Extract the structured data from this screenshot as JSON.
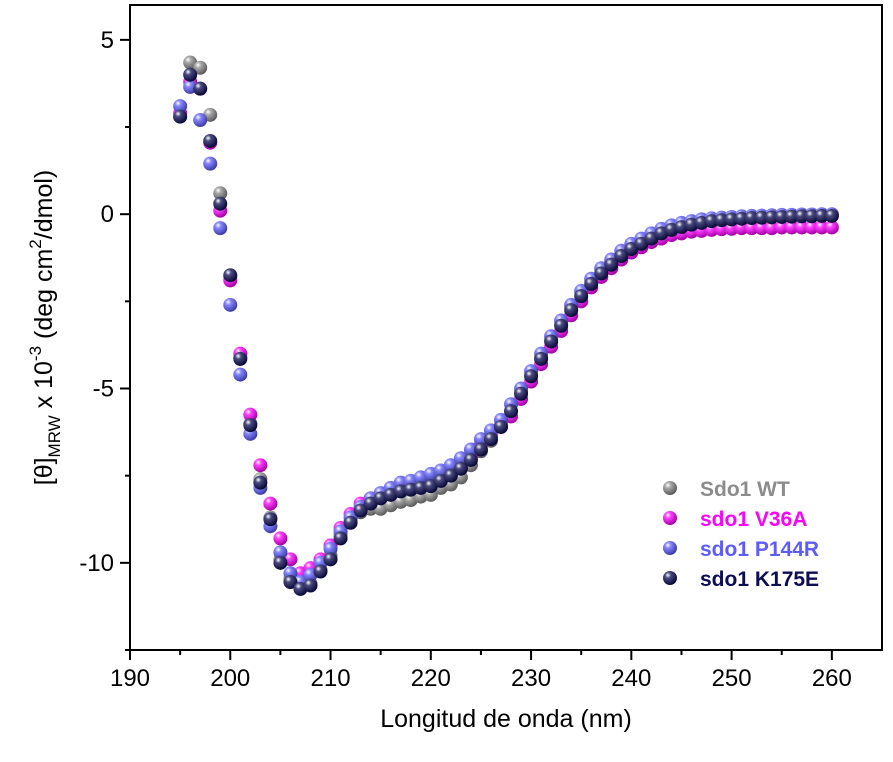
{
  "chart_data": {
    "type": "scatter",
    "xlabel": "Longitud de onda (nm)",
    "ylabel": {
      "prefix": "[θ]",
      "sub": "MRW",
      "mid": " x 10",
      "sup": "-3",
      "mid2": " (deg cm",
      "sup2": "2",
      "suffix": "/dmol)"
    },
    "xlim": [
      190,
      265
    ],
    "ylim": [
      -12.5,
      6
    ],
    "xticks": [
      190,
      200,
      210,
      220,
      230,
      240,
      250,
      260
    ],
    "yticks": [
      5,
      0,
      -5,
      -10
    ],
    "xtick_labels": [
      "190",
      "200",
      "210",
      "220",
      "230",
      "240",
      "250",
      "260"
    ],
    "ytick_labels": [
      "5",
      "0",
      "-5",
      "-10"
    ],
    "legend_position": "bottom-right",
    "grid": false,
    "series": [
      {
        "name": "Sdo1 WT",
        "color": "#8c8c8c",
        "x": [
          195,
          196,
          197,
          198,
          199,
          200,
          201,
          202,
          203,
          204,
          205,
          206,
          207,
          208,
          209,
          210,
          211,
          212,
          213,
          214,
          215,
          216,
          217,
          218,
          219,
          220,
          221,
          222,
          223,
          224,
          225,
          226,
          227,
          228,
          229,
          230,
          231,
          232,
          233,
          234,
          235,
          236,
          237,
          238,
          239,
          240,
          241,
          242,
          243,
          244,
          245,
          246,
          247,
          248,
          249,
          250,
          251,
          252,
          253,
          254,
          255,
          256,
          257,
          258,
          259,
          260
        ],
        "y": [
          2.8,
          4.35,
          4.2,
          2.85,
          0.6,
          -1.8,
          -4.1,
          -6.0,
          -7.6,
          -8.7,
          -9.9,
          -10.45,
          -10.7,
          -10.6,
          -10.2,
          -9.8,
          -9.2,
          -8.8,
          -8.55,
          -8.45,
          -8.45,
          -8.35,
          -8.25,
          -8.2,
          -8.1,
          -8.05,
          -7.85,
          -7.75,
          -7.55,
          -7.2,
          -6.8,
          -6.5,
          -6.1,
          -5.65,
          -5.1,
          -4.6,
          -4.1,
          -3.6,
          -3.15,
          -2.65,
          -2.25,
          -1.9,
          -1.6,
          -1.35,
          -1.1,
          -0.9,
          -0.75,
          -0.6,
          -0.45,
          -0.35,
          -0.3,
          -0.25,
          -0.2,
          -0.18,
          -0.15,
          -0.12,
          -0.1,
          -0.1,
          -0.08,
          -0.08,
          -0.06,
          -0.06,
          -0.05,
          -0.05,
          -0.05,
          -0.05
        ]
      },
      {
        "name": "sdo1 V36A",
        "color": "#ff00ff",
        "x": [
          195,
          196,
          197,
          198,
          199,
          200,
          201,
          202,
          203,
          204,
          205,
          206,
          207,
          208,
          209,
          210,
          211,
          212,
          213,
          214,
          215,
          216,
          217,
          218,
          219,
          220,
          221,
          222,
          223,
          224,
          225,
          226,
          227,
          228,
          229,
          230,
          231,
          232,
          233,
          234,
          235,
          236,
          237,
          238,
          239,
          240,
          241,
          242,
          243,
          244,
          245,
          246,
          247,
          248,
          249,
          250,
          251,
          252,
          253,
          254,
          255,
          256,
          257,
          258,
          259,
          260
        ],
        "y": [
          2.9,
          3.8,
          3.6,
          2.05,
          0.1,
          -1.9,
          -4.0,
          -5.75,
          -7.2,
          -8.3,
          -9.3,
          -9.9,
          -10.3,
          -10.15,
          -9.9,
          -9.5,
          -9.0,
          -8.6,
          -8.3,
          -8.15,
          -8.05,
          -7.95,
          -7.9,
          -7.85,
          -7.8,
          -7.75,
          -7.6,
          -7.45,
          -7.25,
          -6.95,
          -6.6,
          -6.35,
          -6.05,
          -5.8,
          -5.3,
          -4.8,
          -4.3,
          -3.8,
          -3.35,
          -2.9,
          -2.5,
          -2.1,
          -1.8,
          -1.55,
          -1.3,
          -1.1,
          -0.95,
          -0.8,
          -0.7,
          -0.6,
          -0.55,
          -0.5,
          -0.48,
          -0.45,
          -0.43,
          -0.42,
          -0.4,
          -0.4,
          -0.4,
          -0.4,
          -0.38,
          -0.38,
          -0.38,
          -0.38,
          -0.38,
          -0.38
        ]
      },
      {
        "name": "sdo1 P144R",
        "color": "#5c5cff",
        "x": [
          195,
          196,
          197,
          198,
          199,
          200,
          201,
          202,
          203,
          204,
          205,
          206,
          207,
          208,
          209,
          210,
          211,
          212,
          213,
          214,
          215,
          216,
          217,
          218,
          219,
          220,
          221,
          222,
          223,
          224,
          225,
          226,
          227,
          228,
          229,
          230,
          231,
          232,
          233,
          234,
          235,
          236,
          237,
          238,
          239,
          240,
          241,
          242,
          243,
          244,
          245,
          246,
          247,
          248,
          249,
          250,
          251,
          252,
          253,
          254,
          255,
          256,
          257,
          258,
          259,
          260
        ],
        "y": [
          3.1,
          3.65,
          2.7,
          1.45,
          -0.4,
          -2.6,
          -4.6,
          -6.3,
          -7.85,
          -8.95,
          -9.7,
          -10.3,
          -10.55,
          -10.35,
          -10.0,
          -9.6,
          -9.1,
          -8.7,
          -8.4,
          -8.15,
          -8.0,
          -7.85,
          -7.7,
          -7.65,
          -7.55,
          -7.45,
          -7.35,
          -7.2,
          -7.0,
          -6.75,
          -6.45,
          -6.2,
          -5.9,
          -5.45,
          -5.0,
          -4.5,
          -4.0,
          -3.5,
          -3.05,
          -2.6,
          -2.2,
          -1.85,
          -1.55,
          -1.3,
          -1.05,
          -0.85,
          -0.7,
          -0.55,
          -0.42,
          -0.32,
          -0.25,
          -0.2,
          -0.15,
          -0.12,
          -0.1,
          -0.08,
          -0.06,
          -0.05,
          -0.04,
          -0.03,
          -0.02,
          -0.02,
          -0.01,
          -0.01,
          0.0,
          0.0
        ]
      },
      {
        "name": "sdo1 K175E",
        "color": "#0d0d55",
        "x": [
          195,
          196,
          197,
          198,
          199,
          200,
          201,
          202,
          203,
          204,
          205,
          206,
          207,
          208,
          209,
          210,
          211,
          212,
          213,
          214,
          215,
          216,
          217,
          218,
          219,
          220,
          221,
          222,
          223,
          224,
          225,
          226,
          227,
          228,
          229,
          230,
          231,
          232,
          233,
          234,
          235,
          236,
          237,
          238,
          239,
          240,
          241,
          242,
          243,
          244,
          245,
          246,
          247,
          248,
          249,
          250,
          251,
          252,
          253,
          254,
          255,
          256,
          257,
          258,
          259,
          260
        ],
        "y": [
          2.8,
          4.0,
          3.6,
          2.1,
          0.3,
          -1.75,
          -4.15,
          -6.05,
          -7.7,
          -8.75,
          -10.0,
          -10.55,
          -10.75,
          -10.65,
          -10.25,
          -9.9,
          -9.3,
          -8.85,
          -8.5,
          -8.3,
          -8.15,
          -8.05,
          -7.95,
          -7.9,
          -7.85,
          -7.8,
          -7.65,
          -7.5,
          -7.3,
          -7.05,
          -6.75,
          -6.45,
          -6.1,
          -5.65,
          -5.15,
          -4.65,
          -4.15,
          -3.65,
          -3.2,
          -2.75,
          -2.35,
          -2.0,
          -1.7,
          -1.45,
          -1.2,
          -1.0,
          -0.85,
          -0.7,
          -0.55,
          -0.45,
          -0.37,
          -0.3,
          -0.25,
          -0.2,
          -0.17,
          -0.15,
          -0.13,
          -0.11,
          -0.1,
          -0.09,
          -0.08,
          -0.07,
          -0.06,
          -0.06,
          -0.05,
          -0.05
        ]
      }
    ]
  }
}
